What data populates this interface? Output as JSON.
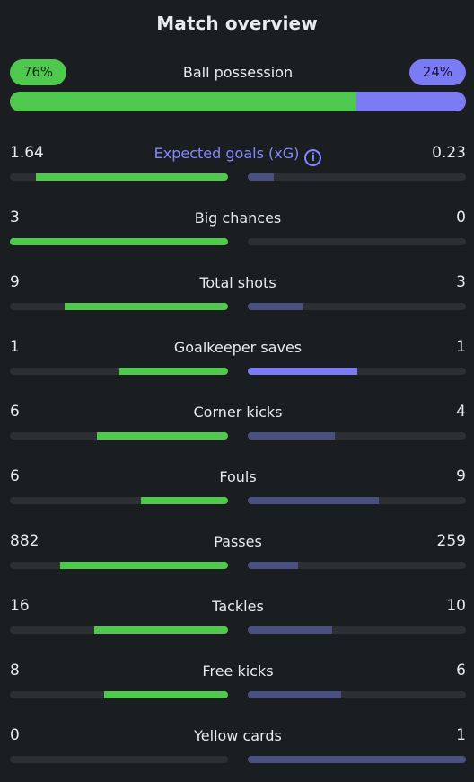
{
  "title": "Match overview",
  "possession": {
    "label": "Ball possession",
    "home": "76%",
    "away": "24%",
    "home_pct": 76
  },
  "colors": {
    "home": "#4ec94e",
    "away_lead": "#7b7cf4",
    "away": "#4a4f82",
    "track": "#2c3035",
    "accent": "#8587ff"
  },
  "stats": [
    {
      "label": "Expected goals (xG)",
      "home": "1.64",
      "away": "0.23",
      "home_frac": 0.88,
      "away_frac": 0.12,
      "accent": true,
      "info_icon": "info-icon"
    },
    {
      "label": "Big chances",
      "home": "3",
      "away": "0",
      "home_frac": 1.0,
      "away_frac": 0.0
    },
    {
      "label": "Total shots",
      "home": "9",
      "away": "3",
      "home_frac": 0.75,
      "away_frac": 0.25
    },
    {
      "label": "Goalkeeper saves",
      "home": "1",
      "away": "1",
      "home_frac": 0.5,
      "away_frac": 0.5,
      "away_lead": true
    },
    {
      "label": "Corner kicks",
      "home": "6",
      "away": "4",
      "home_frac": 0.6,
      "away_frac": 0.4
    },
    {
      "label": "Fouls",
      "home": "6",
      "away": "9",
      "home_frac": 0.4,
      "away_frac": 0.6
    },
    {
      "label": "Passes",
      "home": "882",
      "away": "259",
      "home_frac": 0.77,
      "away_frac": 0.23
    },
    {
      "label": "Tackles",
      "home": "16",
      "away": "10",
      "home_frac": 0.615,
      "away_frac": 0.385
    },
    {
      "label": "Free kicks",
      "home": "8",
      "away": "6",
      "home_frac": 0.57,
      "away_frac": 0.43
    },
    {
      "label": "Yellow cards",
      "home": "0",
      "away": "1",
      "home_frac": 0.0,
      "away_frac": 1.0
    }
  ]
}
